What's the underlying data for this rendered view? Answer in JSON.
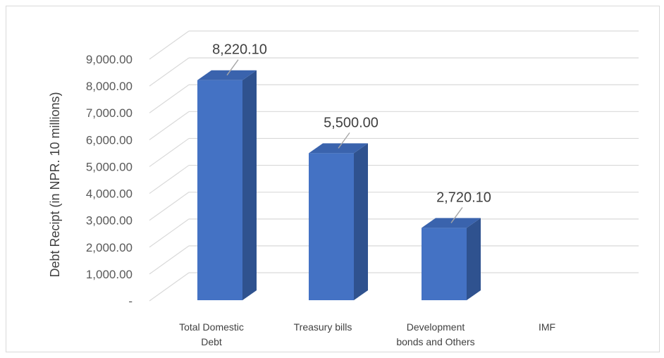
{
  "chart_data": {
    "type": "bar",
    "style": "3d-column",
    "categories": [
      [
        "Total Domestic",
        "Debt"
      ],
      [
        "Treasury bills"
      ],
      [
        "Development",
        "bonds and Others"
      ],
      [
        "IMF"
      ]
    ],
    "values": [
      8220.1,
      5500.0,
      2720.1,
      0
    ],
    "data_labels": [
      "8,220.10",
      "5,500.00",
      "2,720.10",
      ""
    ],
    "ylabel": "Debt Recipt (in NPR.  10 millions)",
    "ylim": [
      0,
      9000
    ],
    "yticks": [
      0,
      1000,
      2000,
      3000,
      4000,
      5000,
      6000,
      7000,
      8000,
      9000
    ],
    "ytick_labels": [
      "-",
      "1,000.00",
      "2,000.00",
      "3,000.00",
      "4,000.00",
      "5,000.00",
      "6,000.00",
      "7,000.00",
      "8,000.00",
      "9,000.00"
    ],
    "grid": true,
    "legend": "none",
    "colors": {
      "front": "#4472c4",
      "side": "#2f528f",
      "top": "#3a63ad",
      "grid": "#d9d9d9"
    }
  }
}
